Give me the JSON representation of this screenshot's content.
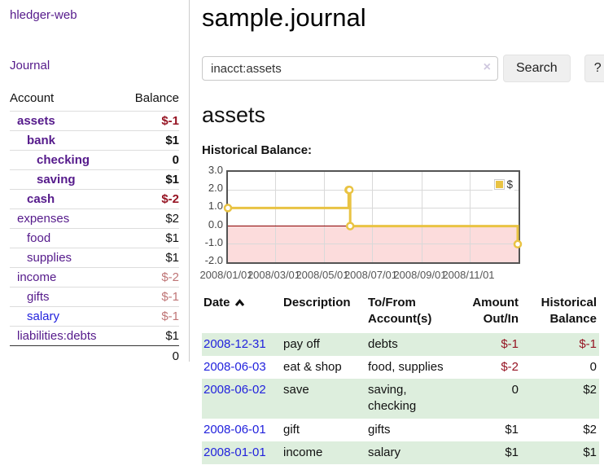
{
  "brand": "hledger-web",
  "nav": {
    "journal": "Journal"
  },
  "sidebar": {
    "header": {
      "account": "Account",
      "balance": "Balance"
    },
    "accounts": [
      {
        "name": "assets",
        "balance": "$-1"
      },
      {
        "name": "bank",
        "balance": "$1"
      },
      {
        "name": "checking",
        "balance": "0"
      },
      {
        "name": "saving",
        "balance": "$1"
      },
      {
        "name": "cash",
        "balance": "$-2"
      },
      {
        "name": "expenses",
        "balance": "$2"
      },
      {
        "name": "food",
        "balance": "$1"
      },
      {
        "name": "supplies",
        "balance": "$1"
      },
      {
        "name": "income",
        "balance": "$-2"
      },
      {
        "name": "gifts",
        "balance": "$-1"
      },
      {
        "name": "salary",
        "balance": "$-1"
      },
      {
        "name": "liabilities:debts",
        "balance": "$1"
      }
    ],
    "total": "0"
  },
  "page": {
    "title": "sample.journal",
    "account_heading": "assets",
    "chart_heading": "Historical Balance:"
  },
  "search": {
    "value": "inacct:assets",
    "clear": "×",
    "search_button": "Search",
    "help_button": "?"
  },
  "chart_data": {
    "type": "line",
    "style": "step",
    "title": "Historical Balance:",
    "legend": {
      "label": "$",
      "position": "top-right"
    },
    "x_range": [
      "2008-01-01",
      "2009-01-01"
    ],
    "ylim": [
      -2.0,
      3.0
    ],
    "yticks": [
      3.0,
      2.0,
      1.0,
      0.0,
      -1.0,
      -2.0
    ],
    "ytick_labels": [
      "3.0",
      "2.0",
      "1.0",
      "0.0",
      "-1.0",
      "-2.0"
    ],
    "xticks": [
      "2008/01/01",
      "2008/03/01",
      "2008/05/01",
      "2008/07/01",
      "2008/09/01",
      "2008/11/01"
    ],
    "series": [
      {
        "name": "$",
        "color": "#e9c343",
        "points": [
          [
            "2008-01-01",
            1
          ],
          [
            "2008-06-01",
            2
          ],
          [
            "2008-06-02",
            2
          ],
          [
            "2008-06-03",
            0
          ],
          [
            "2008-12-31",
            -1
          ]
        ]
      }
    ],
    "colors": {
      "negative_region": "#fcdcdc",
      "zero_line": "#8b0000",
      "grid": "#d9d9d9",
      "plot_border": "#545454",
      "marker_fill": "#ffffff"
    },
    "grid": true
  },
  "register": {
    "columns": [
      "Date",
      "Description",
      "To/From Account(s)",
      "Amount Out/In",
      "Historical Balance"
    ],
    "rows": [
      {
        "date": "2008-12-31",
        "description": "pay off",
        "accounts": "debts",
        "amount": "$-1",
        "balance": "$-1"
      },
      {
        "date": "2008-06-03",
        "description": "eat & shop",
        "accounts": "food, supplies",
        "amount": "$-2",
        "balance": "0"
      },
      {
        "date": "2008-06-02",
        "description": "save",
        "accounts": "saving, checking",
        "amount": "0",
        "balance": "$2"
      },
      {
        "date": "2008-06-01",
        "description": "gift",
        "accounts": "gifts",
        "amount": "$1",
        "balance": "$2"
      },
      {
        "date": "2008-01-01",
        "description": "income",
        "accounts": "salary",
        "amount": "$1",
        "balance": "$1"
      }
    ]
  }
}
